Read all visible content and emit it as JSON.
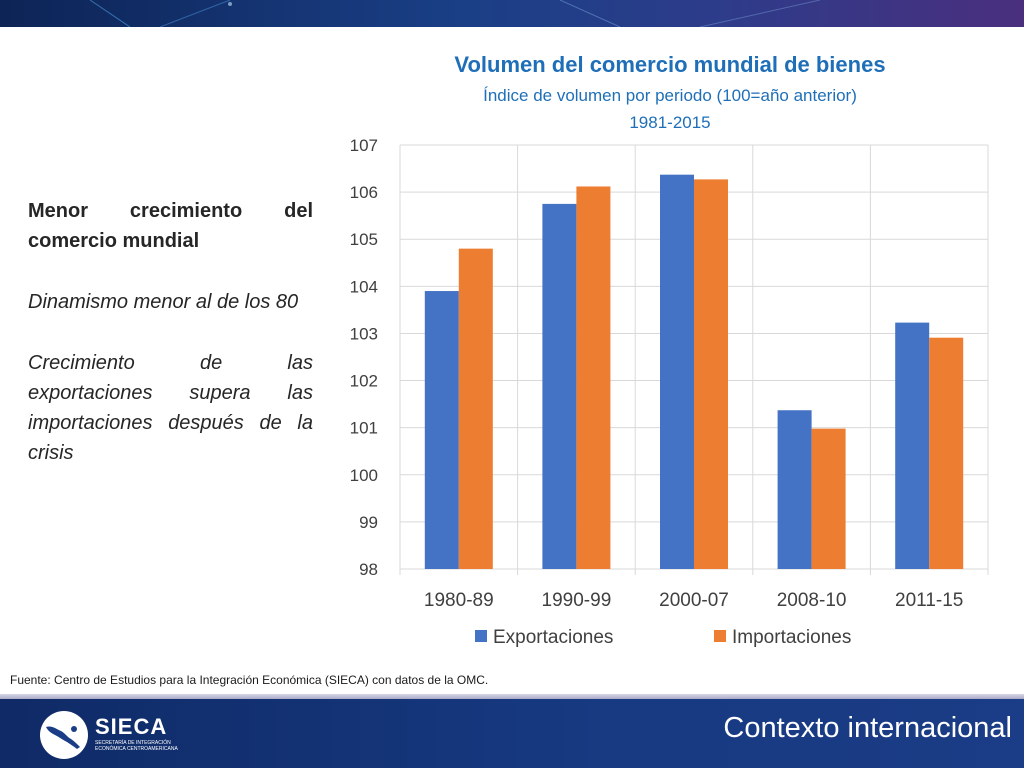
{
  "left_panel": {
    "heading": "Menor crecimiento del comercio mundial",
    "point1": "Dinamismo menor al de los 80",
    "point2": "Crecimiento de las exportaciones supera las importaciones después de la crisis"
  },
  "source_note": "Fuente: Centro de Estudios para la Integración Económica (SIECA) con datos de la OMC.",
  "footer": {
    "logo_name": "SIECA",
    "logo_subtitle": "SECRETARÍA DE INTEGRACIÓN ECONÓMICA CENTROAMERICANA",
    "section_title": "Contexto internacional"
  },
  "colors": {
    "exportaciones": "#4472c4",
    "importaciones": "#ed7d31",
    "title": "#1f6fb8"
  },
  "chart_data": {
    "type": "bar",
    "title": "Volumen del comercio mundial de bienes",
    "subtitle": "Índice de volumen por periodo (100=año anterior)",
    "period": "1981-2015",
    "categories": [
      "1980-89",
      "1990-99",
      "2000-07",
      "2008-10",
      "2011-15"
    ],
    "series": [
      {
        "name": "Exportaciones",
        "values": [
          103.9,
          105.75,
          106.37,
          101.37,
          103.23
        ]
      },
      {
        "name": "Importaciones",
        "values": [
          104.8,
          106.12,
          106.27,
          100.98,
          102.91
        ]
      }
    ],
    "ylim": [
      98,
      107
    ],
    "yticks": [
      98,
      99,
      100,
      101,
      102,
      103,
      104,
      105,
      106,
      107
    ],
    "grid": true,
    "legend": "bottom"
  }
}
